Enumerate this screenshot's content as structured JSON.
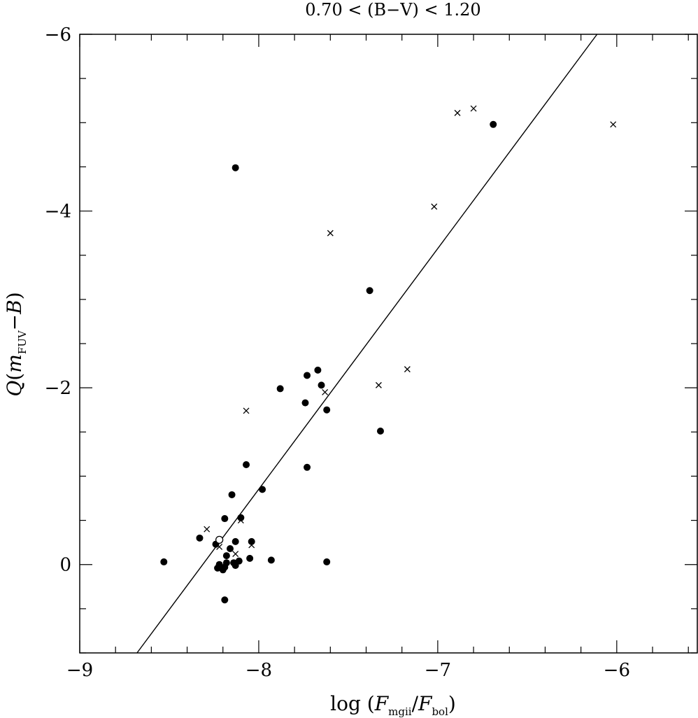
{
  "chart_data": {
    "type": "scatter",
    "title": "0.70 < (B−V) < 1.20",
    "xlabel": {
      "prefix": "log (",
      "num_var": "F",
      "num_sub": "mgii",
      "slash": "/",
      "den_var": "F",
      "den_sub": "bol",
      "suffix": ")"
    },
    "ylabel": {
      "q": "Q",
      "open": "(",
      "var": "m",
      "sub": "FUV",
      "minus": "−B",
      "close": ")"
    },
    "xlim": [
      -9.0,
      -5.55
    ],
    "ylim": [
      1.0,
      -6.0
    ],
    "y_inverted": true,
    "x_ticks": [
      {
        "value": -9,
        "label": "−9"
      },
      {
        "value": -8,
        "label": "−8"
      },
      {
        "value": -7,
        "label": "−7"
      },
      {
        "value": -6,
        "label": "−6"
      }
    ],
    "y_ticks": [
      {
        "value": 0,
        "label": "0"
      },
      {
        "value": -2,
        "label": "−2"
      },
      {
        "value": -4,
        "label": "−4"
      },
      {
        "value": -6,
        "label": "−6"
      }
    ],
    "x_minor_step": 0.2,
    "y_minor_step": 0.5,
    "grid": false,
    "legend": "none",
    "fit_line": {
      "x": [
        -8.68,
        -6.11
      ],
      "y": [
        1.0,
        -6.0
      ]
    },
    "series": [
      {
        "marker": "filled-circle",
        "points": [
          [
            -8.53,
            -0.03
          ],
          [
            -8.13,
            -4.49
          ],
          [
            -7.38,
            -3.1
          ],
          [
            -6.69,
            -4.98
          ],
          [
            -7.73,
            -2.14
          ],
          [
            -7.67,
            -2.2
          ],
          [
            -7.65,
            -2.03
          ],
          [
            -7.88,
            -1.99
          ],
          [
            -7.74,
            -1.83
          ],
          [
            -7.62,
            -1.75
          ],
          [
            -7.32,
            -1.51
          ],
          [
            -8.07,
            -1.13
          ],
          [
            -7.73,
            -1.1
          ],
          [
            -7.98,
            -0.85
          ],
          [
            -8.15,
            -0.79
          ],
          [
            -8.1,
            -0.53
          ],
          [
            -8.19,
            -0.52
          ],
          [
            -8.33,
            -0.3
          ],
          [
            -8.24,
            -0.23
          ],
          [
            -8.13,
            -0.26
          ],
          [
            -8.04,
            -0.26
          ],
          [
            -8.16,
            -0.18
          ],
          [
            -8.18,
            -0.1
          ],
          [
            -8.05,
            -0.07
          ],
          [
            -7.93,
            -0.05
          ],
          [
            -8.11,
            -0.04
          ],
          [
            -8.18,
            -0.02
          ],
          [
            -8.22,
            0.0
          ],
          [
            -8.14,
            -0.02
          ],
          [
            -8.19,
            0.03
          ],
          [
            -8.23,
            0.04
          ],
          [
            -8.2,
            0.06
          ],
          [
            -8.19,
            0.4
          ],
          [
            -7.62,
            -0.03
          ],
          [
            -8.13,
            0.01
          ]
        ]
      },
      {
        "marker": "open-circle",
        "points": [
          [
            -8.22,
            -0.28
          ]
        ]
      },
      {
        "marker": "cross",
        "points": [
          [
            -6.89,
            -5.11
          ],
          [
            -6.8,
            -5.16
          ],
          [
            -6.02,
            -4.98
          ],
          [
            -7.02,
            -4.05
          ],
          [
            -7.6,
            -3.75
          ],
          [
            -7.17,
            -2.21
          ],
          [
            -7.33,
            -2.03
          ],
          [
            -7.63,
            -1.95
          ],
          [
            -8.07,
            -1.74
          ],
          [
            -8.29,
            -0.4
          ],
          [
            -8.22,
            -0.2
          ],
          [
            -8.13,
            -0.12
          ],
          [
            -8.1,
            -0.5
          ],
          [
            -8.04,
            -0.22
          ]
        ]
      }
    ]
  }
}
